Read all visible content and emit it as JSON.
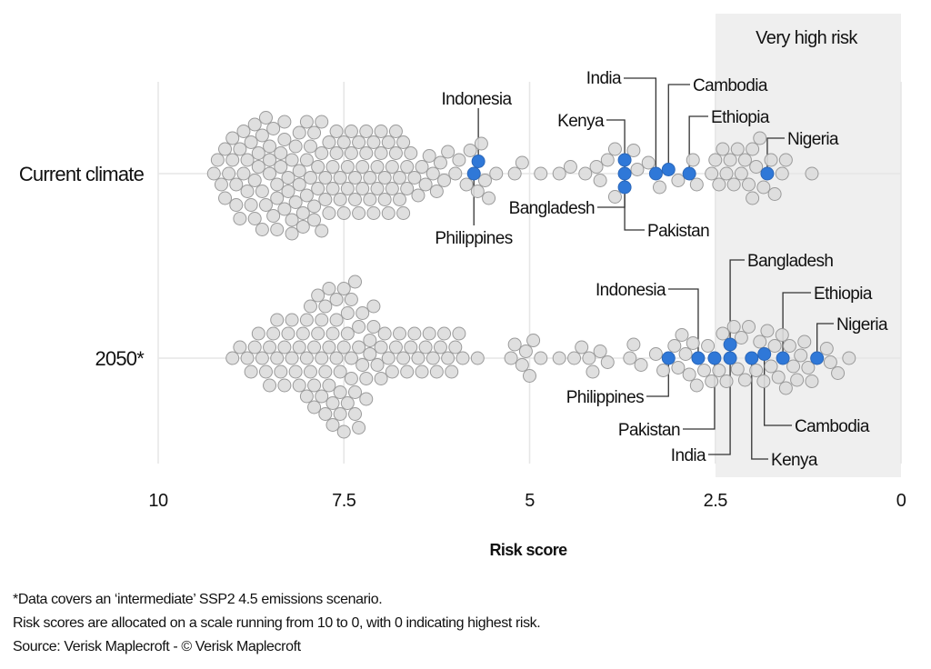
{
  "chart_data": {
    "type": "scatter",
    "subtype": "beeswarm",
    "xlabel": "Risk score",
    "x_reversed": true,
    "xlim": [
      10,
      0
    ],
    "xticks": [
      "10",
      "7.5",
      "5",
      "2.5",
      "0"
    ],
    "xtick_values": [
      10,
      7.5,
      5,
      2.5,
      0
    ],
    "grid": "vertical at ticks",
    "shaded_region": {
      "from": 2.5,
      "to": 0,
      "label": "Very high risk",
      "color": "#efefef"
    },
    "colors": {
      "other": "#dcdcdc",
      "other_stroke": "#9a9a9a",
      "highlight": "#2f78d8"
    },
    "rows": [
      {
        "label": "Current climate",
        "highlighted": [
          {
            "name": "Indonesia",
            "value": 5.69
          },
          {
            "name": "Philippines",
            "value": 5.75
          },
          {
            "name": "Kenya",
            "value": 3.72
          },
          {
            "name": "Bangladesh",
            "value": 3.72
          },
          {
            "name": "Pakistan",
            "value": 3.72
          },
          {
            "name": "India",
            "value": 3.3
          },
          {
            "name": "Cambodia",
            "value": 3.13
          },
          {
            "name": "Ethiopia",
            "value": 2.85
          },
          {
            "name": "Nigeria",
            "value": 1.8
          }
        ],
        "others": [
          9.25,
          9.2,
          9.15,
          9.1,
          9.1,
          9.05,
          9.0,
          9.0,
          8.95,
          8.95,
          8.9,
          8.9,
          8.85,
          8.85,
          8.8,
          8.8,
          8.75,
          8.75,
          8.7,
          8.7,
          8.7,
          8.65,
          8.65,
          8.6,
          8.6,
          8.6,
          8.55,
          8.55,
          8.5,
          8.5,
          8.5,
          8.45,
          8.45,
          8.4,
          8.4,
          8.4,
          8.35,
          8.35,
          8.3,
          8.3,
          8.3,
          8.25,
          8.25,
          8.2,
          8.2,
          8.2,
          8.15,
          8.15,
          8.1,
          8.1,
          8.1,
          8.05,
          8.05,
          8.0,
          8.0,
          8.0,
          7.95,
          7.95,
          7.9,
          7.9,
          7.9,
          7.85,
          7.85,
          7.8,
          7.8,
          7.8,
          7.75,
          7.75,
          7.7,
          7.7,
          7.65,
          7.65,
          7.6,
          7.6,
          7.55,
          7.55,
          7.5,
          7.5,
          7.45,
          7.45,
          7.4,
          7.4,
          7.35,
          7.35,
          7.3,
          7.3,
          7.25,
          7.25,
          7.2,
          7.2,
          7.15,
          7.15,
          7.1,
          7.1,
          7.05,
          7.05,
          7.0,
          7.0,
          6.95,
          6.95,
          6.9,
          6.9,
          6.85,
          6.85,
          6.8,
          6.8,
          6.75,
          6.75,
          6.7,
          6.7,
          6.65,
          6.65,
          6.6,
          6.55,
          6.5,
          6.45,
          6.4,
          6.35,
          6.3,
          6.25,
          6.2,
          6.15,
          6.1,
          6.0,
          5.95,
          5.85,
          5.8,
          5.7,
          5.65,
          5.6,
          5.55,
          5.45,
          5.2,
          5.1,
          4.85,
          4.6,
          4.45,
          4.25,
          4.1,
          4.05,
          3.95,
          3.85,
          3.85,
          3.6,
          3.55,
          3.4,
          3.25,
          3.0,
          2.8,
          2.75,
          2.55,
          2.5,
          2.45,
          2.4,
          2.35,
          2.3,
          2.25,
          2.2,
          2.15,
          2.1,
          2.05,
          2.0,
          2.0,
          1.95,
          1.9,
          1.85,
          1.75,
          1.7,
          1.6,
          1.55,
          1.2
        ]
      },
      {
        "label": "2050*",
        "highlighted": [
          {
            "name": "Indonesia",
            "value": 2.73
          },
          {
            "name": "Philippines",
            "value": 3.13
          },
          {
            "name": "Bangladesh",
            "value": 2.3
          },
          {
            "name": "Pakistan",
            "value": 2.51
          },
          {
            "name": "India",
            "value": 2.3
          },
          {
            "name": "Kenya",
            "value": 2.01
          },
          {
            "name": "Cambodia",
            "value": 1.84
          },
          {
            "name": "Ethiopia",
            "value": 1.59
          },
          {
            "name": "Nigeria",
            "value": 1.13
          }
        ],
        "others": [
          9.0,
          8.9,
          8.8,
          8.75,
          8.7,
          8.65,
          8.6,
          8.55,
          8.5,
          8.5,
          8.45,
          8.4,
          8.4,
          8.35,
          8.3,
          8.3,
          8.25,
          8.2,
          8.2,
          8.15,
          8.1,
          8.1,
          8.05,
          8.0,
          8.0,
          8.0,
          7.95,
          7.95,
          7.9,
          7.9,
          7.9,
          7.85,
          7.85,
          7.8,
          7.8,
          7.8,
          7.75,
          7.75,
          7.75,
          7.7,
          7.7,
          7.7,
          7.65,
          7.65,
          7.65,
          7.6,
          7.6,
          7.6,
          7.55,
          7.55,
          7.55,
          7.5,
          7.5,
          7.5,
          7.45,
          7.45,
          7.45,
          7.4,
          7.4,
          7.4,
          7.35,
          7.35,
          7.35,
          7.3,
          7.3,
          7.3,
          7.25,
          7.25,
          7.2,
          7.2,
          7.15,
          7.15,
          7.1,
          7.1,
          7.05,
          7.0,
          7.0,
          6.95,
          6.9,
          6.85,
          6.8,
          6.75,
          6.7,
          6.65,
          6.6,
          6.55,
          6.5,
          6.45,
          6.4,
          6.35,
          6.3,
          6.25,
          6.2,
          6.15,
          6.1,
          6.05,
          6.0,
          5.95,
          5.9,
          5.7,
          5.25,
          5.2,
          5.1,
          5.05,
          5.0,
          4.95,
          4.85,
          4.6,
          4.4,
          4.3,
          4.2,
          4.15,
          4.05,
          3.95,
          3.65,
          3.6,
          3.5,
          3.3,
          3.2,
          3.05,
          3.0,
          2.95,
          2.9,
          2.85,
          2.8,
          2.75,
          2.65,
          2.6,
          2.55,
          2.45,
          2.4,
          2.35,
          2.25,
          2.2,
          2.15,
          2.1,
          2.05,
          1.95,
          1.9,
          1.85,
          1.8,
          1.75,
          1.7,
          1.65,
          1.6,
          1.55,
          1.5,
          1.45,
          1.4,
          1.35,
          1.3,
          1.25,
          1.2,
          1.0,
          0.95,
          0.85,
          0.7
        ]
      }
    ]
  },
  "footnotes": [
    "*Data covers an ‘intermediate’ SSP2 4.5 emissions scenario.",
    "Risk scores are allocated on a scale running from 10 to 0, with 0 indicating highest risk.",
    "Source: Verisk Maplecroft - © Verisk Maplecroft"
  ]
}
